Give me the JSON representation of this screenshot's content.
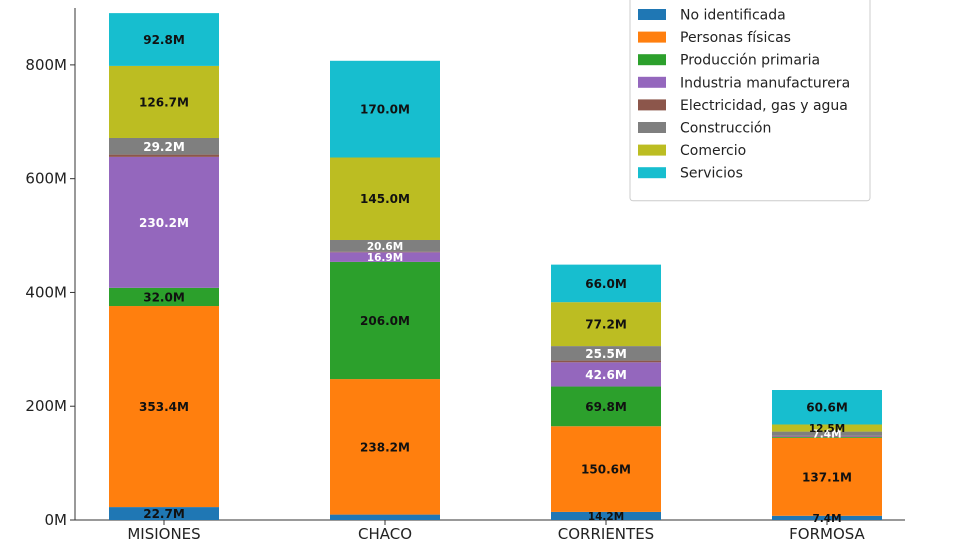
{
  "chart_data": {
    "type": "bar",
    "stacked": true,
    "categories": [
      "MISIONES",
      "CHACO",
      "CORRIENTES",
      "FORMOSA"
    ],
    "ylim": [
      0,
      900
    ],
    "y_unit_suffix": "M",
    "y_ticks": [
      "0M",
      "200M",
      "400M",
      "600M",
      "800M"
    ],
    "y_tick_values": [
      0,
      200,
      400,
      600,
      800
    ],
    "grid": false,
    "legend_position": "top-right",
    "legend_title_partial": "...",
    "series": [
      {
        "name": "No identificada",
        "color": "#1f77b4",
        "values": [
          22.7,
          9.5,
          14.2,
          7.4
        ],
        "labels": [
          "22.7M",
          "",
          "14.2M",
          "7.4M"
        ]
      },
      {
        "name": "Personas físicas",
        "color": "#ff7f0e",
        "values": [
          353.4,
          238.2,
          150.6,
          137.1
        ],
        "labels": [
          "353.4M",
          "238.2M",
          "150.6M",
          "137.1M"
        ]
      },
      {
        "name": "Producción primaria",
        "color": "#2ca02c",
        "values": [
          32.0,
          206.0,
          69.8,
          1.5
        ],
        "labels": [
          "32.0M",
          "206.0M",
          "69.8M",
          ""
        ]
      },
      {
        "name": "Industria manufacturera",
        "color": "#9467bd",
        "values": [
          230.2,
          16.9,
          42.6,
          1.5
        ],
        "labels": [
          "230.2M",
          "16.9M",
          "42.6M",
          ""
        ]
      },
      {
        "name": "Electricidad, gas y agua",
        "color": "#8c564b",
        "values": [
          4.0,
          1.0,
          3.0,
          0.5
        ],
        "labels": [
          "",
          "",
          "",
          ""
        ]
      },
      {
        "name": "Construcción",
        "color": "#7f7f7f",
        "values": [
          29.2,
          20.6,
          25.5,
          7.4
        ],
        "labels": [
          "29.2M",
          "20.6M",
          "25.5M",
          "7.4M"
        ]
      },
      {
        "name": "Comercio",
        "color": "#bcbd22",
        "values": [
          126.7,
          145.0,
          77.2,
          12.5
        ],
        "labels": [
          "126.7M",
          "145.0M",
          "77.2M",
          "12.5M"
        ]
      },
      {
        "name": "Servicios",
        "color": "#17becf",
        "values": [
          92.8,
          170.0,
          66.0,
          60.6
        ],
        "labels": [
          "92.8M",
          "170.0M",
          "66.0M",
          "60.6M"
        ]
      }
    ]
  }
}
